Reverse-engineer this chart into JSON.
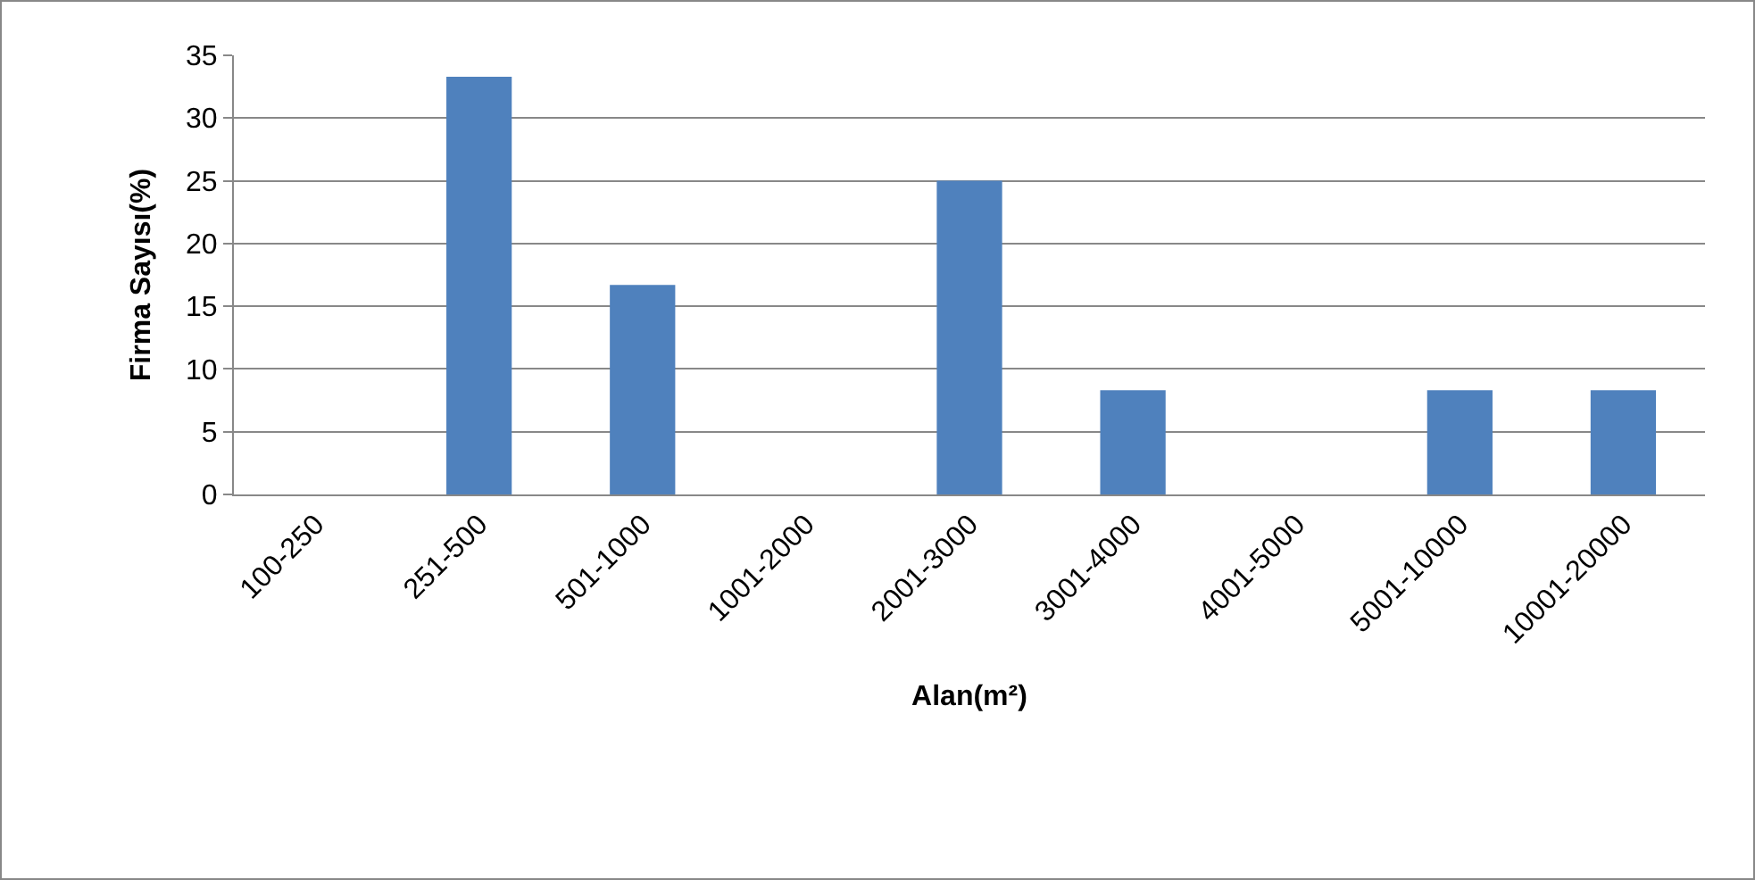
{
  "chart_data": {
    "type": "bar",
    "xlabel": "Alan(m²)",
    "ylabel": "Firma Sayısı(%)",
    "categories": [
      "100-250",
      "251-500",
      "501-1000",
      "1001-2000",
      "2001-3000",
      "3001-4000",
      "4001-5000",
      "5001-10000",
      "10001-20000"
    ],
    "values": [
      0,
      33.3,
      16.7,
      0,
      25,
      8.3,
      0,
      8.3,
      8.3
    ],
    "color": "#4f81bd",
    "ylim": [
      0,
      35
    ],
    "yticks": [
      0,
      5,
      10,
      15,
      20,
      25,
      30,
      35
    ],
    "grid": "y"
  }
}
